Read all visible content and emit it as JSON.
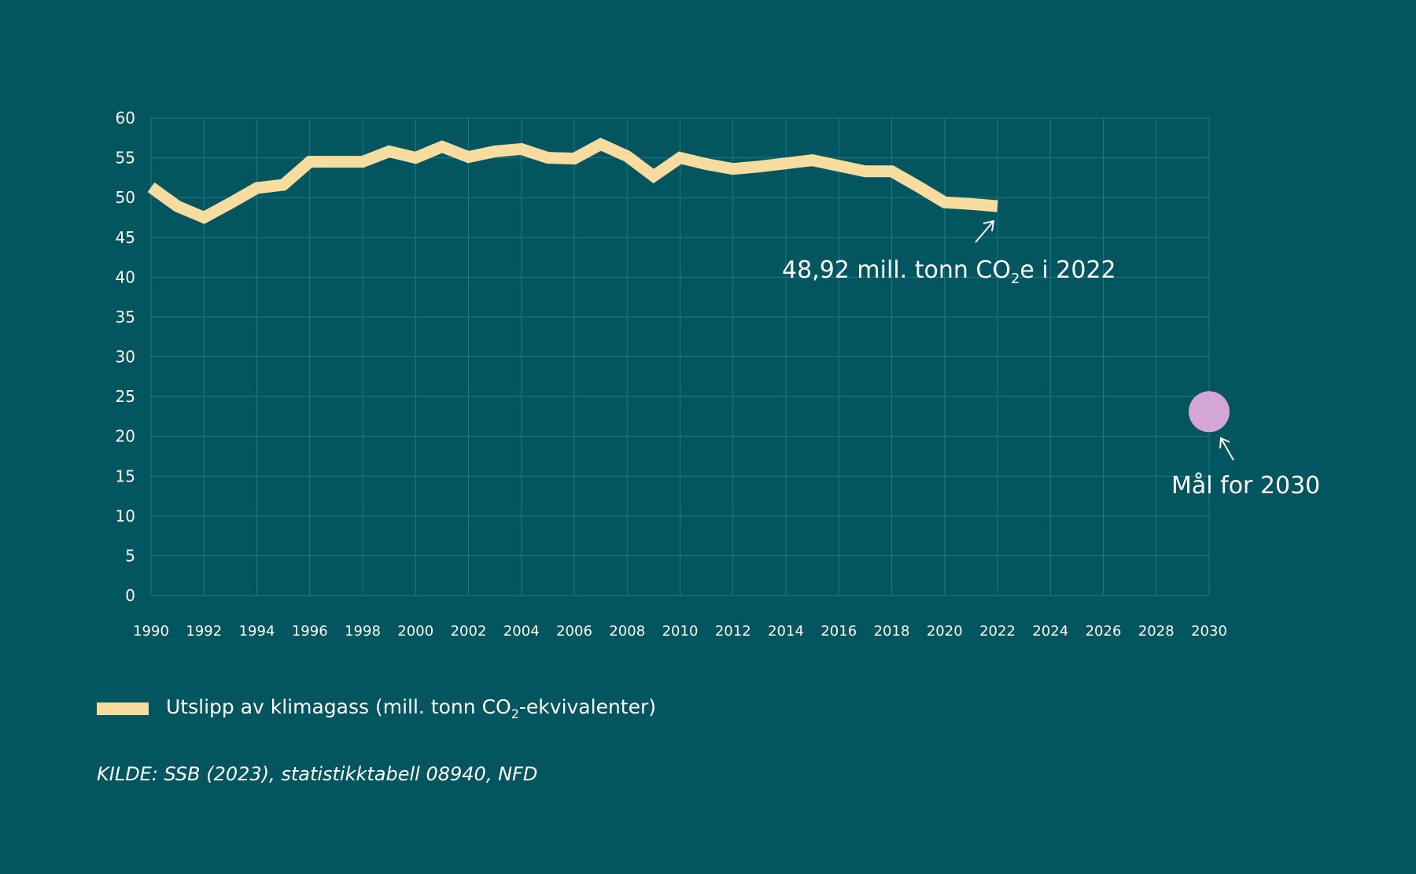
{
  "chart_data": {
    "type": "line",
    "title": "",
    "xlabel": "",
    "ylabel": "",
    "xlim": [
      1990,
      2030
    ],
    "ylim": [
      0,
      60
    ],
    "yticks": [
      0,
      5,
      10,
      15,
      20,
      25,
      30,
      35,
      40,
      45,
      50,
      55,
      60
    ],
    "xticks": [
      1990,
      1992,
      1994,
      1996,
      1998,
      2000,
      2002,
      2004,
      2006,
      2008,
      2010,
      2012,
      2014,
      2016,
      2018,
      2020,
      2022,
      2024,
      2026,
      2028,
      2030
    ],
    "grid": true,
    "legend_placement": "bottom-left",
    "series": [
      {
        "name": "Utslipp av klimagass (mill. tonn CO₂-ekvivalenter)",
        "color": "#f7dca0",
        "x": [
          1990,
          1991,
          1992,
          1993,
          1994,
          1995,
          1996,
          1997,
          1998,
          1999,
          2000,
          2001,
          2002,
          2003,
          2004,
          2005,
          2006,
          2007,
          2008,
          2009,
          2010,
          2011,
          2012,
          2013,
          2014,
          2015,
          2016,
          2017,
          2018,
          2019,
          2020,
          2021,
          2022
        ],
        "y": [
          51.3,
          48.9,
          47.5,
          49.3,
          51.2,
          51.6,
          54.5,
          54.5,
          54.5,
          55.8,
          55.0,
          56.4,
          55.1,
          55.8,
          56.1,
          55.0,
          54.9,
          56.7,
          55.2,
          52.7,
          55.0,
          54.2,
          53.6,
          53.9,
          54.3,
          54.7,
          54.0,
          53.3,
          53.3,
          51.4,
          49.4,
          49.2,
          48.92
        ]
      }
    ],
    "target_point": {
      "x": 2030,
      "y": 23.1,
      "color": "#d3a6d6"
    },
    "annotations": {
      "last_value_prefix": "48,92 mill. tonn CO",
      "last_value_sub": "2",
      "last_value_suffix": "e i 2022",
      "target_label": "Mål for 2030"
    }
  },
  "legend": {
    "prefix": "Utslipp av klimagass (mill. tonn CO",
    "sub": "2",
    "suffix": "-ekvivalenter)"
  },
  "source": "KILDE: SSB (2023), statistikktabell 08940, NFD",
  "colors": {
    "background": "#03555f",
    "grid": "#1f7a80"
  }
}
